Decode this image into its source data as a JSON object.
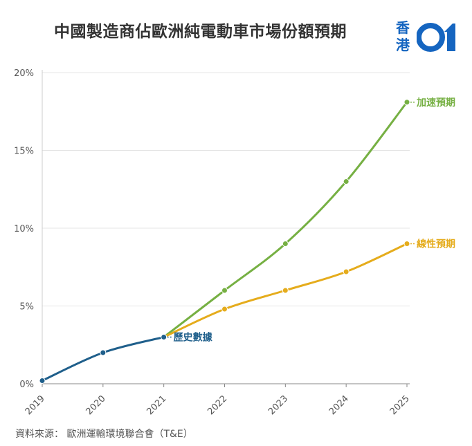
{
  "title": "中國製造商佔歐洲純電動車市場份額預期",
  "logo": {
    "text": "香港",
    "number": "01",
    "color": "#1565c0"
  },
  "source": "資料來源： 歐洲運輸環境聯合會（T&E）",
  "chart_data": {
    "type": "line",
    "x": [
      "2019",
      "2020",
      "2021",
      "2022",
      "2023",
      "2024",
      "2025"
    ],
    "ylim": [
      0,
      20
    ],
    "yticks": [
      "0%",
      "5%",
      "10%",
      "15%",
      "20%"
    ],
    "grid": true,
    "series": [
      {
        "name": "歷史數據",
        "color": "#1f5f8b",
        "x": [
          "2019",
          "2020",
          "2021"
        ],
        "values": [
          0.2,
          2.0,
          3.0
        ]
      },
      {
        "name": "加速預期",
        "color": "#76b043",
        "x": [
          "2021",
          "2022",
          "2023",
          "2024",
          "2025"
        ],
        "values": [
          3.0,
          6.0,
          9.0,
          13.0,
          18.1
        ]
      },
      {
        "name": "線性預期",
        "color": "#e5ac1c",
        "x": [
          "2021",
          "2022",
          "2023",
          "2024",
          "2025"
        ],
        "values": [
          3.0,
          4.8,
          6.0,
          7.2,
          9.0
        ]
      }
    ]
  }
}
